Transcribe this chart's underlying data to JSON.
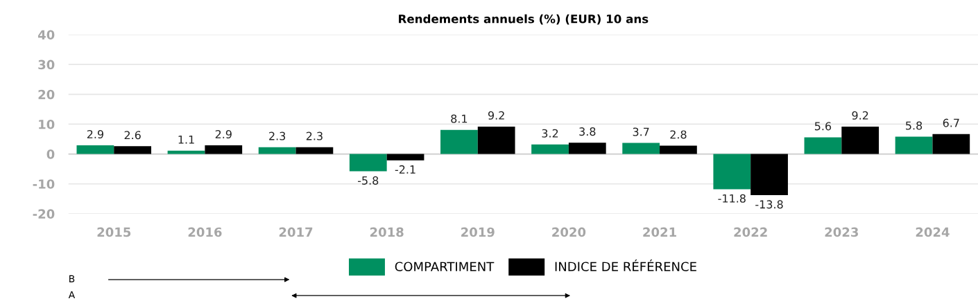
{
  "chart_data": {
    "type": "bar",
    "title": "Rendements annuels (%) (EUR) 10 ans",
    "categories": [
      "2015",
      "2016",
      "2017",
      "2018",
      "2019",
      "2020",
      "2021",
      "2022",
      "2023",
      "2024"
    ],
    "series": [
      {
        "name": "COMPARTIMENT",
        "color": "#009060",
        "values": [
          2.9,
          1.1,
          2.3,
          -5.8,
          8.1,
          3.2,
          3.7,
          -11.8,
          5.6,
          5.8
        ]
      },
      {
        "name": "INDICE DE RÉFÉRENCE",
        "color": "#000000",
        "values": [
          2.6,
          2.9,
          2.3,
          -2.1,
          9.2,
          3.8,
          2.8,
          -13.8,
          9.2,
          6.7
        ]
      }
    ],
    "ylim": [
      -20,
      40
    ],
    "yticks": [
      -20,
      -10,
      0,
      10,
      20,
      30,
      40
    ],
    "grid": "y",
    "legend": "bottom",
    "data_labels": true,
    "annotations": [
      "B",
      "A"
    ]
  }
}
